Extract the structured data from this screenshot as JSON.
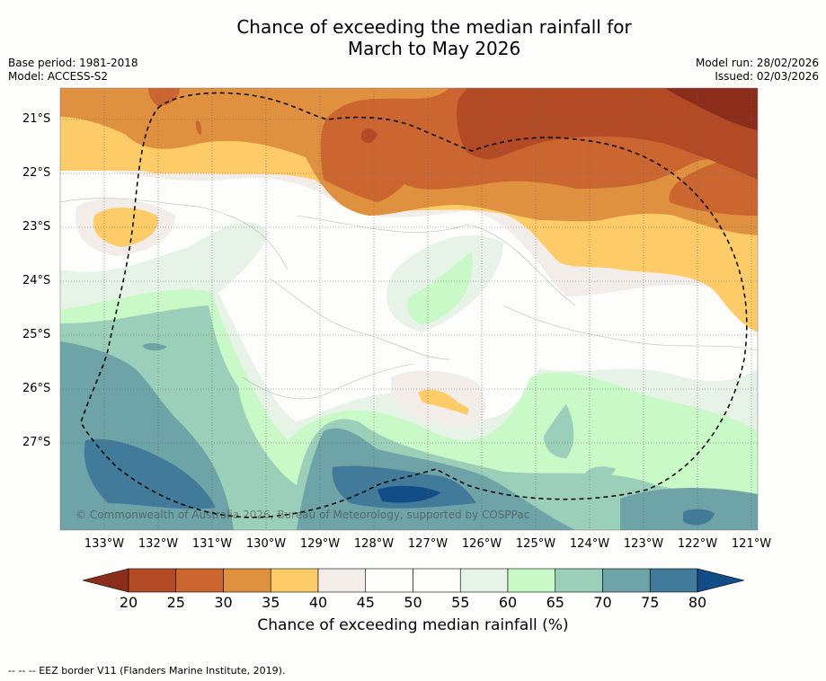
{
  "title_line1": "Chance of exceeding the median rainfall for",
  "title_line2": "March to May 2026",
  "base_period": "Base period: 1981-2018",
  "model": "Model: ACCESS-S2",
  "model_run": "Model run: 28/02/2026",
  "issued": "Issued: 02/03/2026",
  "copyright": "© Commonwealth of Australia 2026, Bureau of Meteorology, supported by COSPPac",
  "footer": "--  --  -- EEZ border V11 (Flanders Marine Institute, 2019).",
  "map": {
    "lat_labels": [
      "21°S",
      "22°S",
      "23°S",
      "24°S",
      "25°S",
      "26°S",
      "27°S"
    ],
    "lon_labels": [
      "133°W",
      "132°W",
      "131°W",
      "130°W",
      "129°W",
      "128°W",
      "127°W",
      "126°W",
      "125°W",
      "124°W",
      "123°W",
      "122°W",
      "121°W"
    ]
  },
  "colorbar": {
    "label": "Chance of exceeding median rainfall (%)",
    "ticks": [
      "20",
      "25",
      "30",
      "35",
      "40",
      "45",
      "50",
      "55",
      "60",
      "65",
      "70",
      "75",
      "80"
    ],
    "colors": [
      "#8c2d1c",
      "#b24a26",
      "#cc6630",
      "#df9140",
      "#fdcb67",
      "#f3ede9",
      "#fdfefc",
      "#fdfefc",
      "#e8f3e8",
      "#c8f9c6",
      "#9ccfb9",
      "#6ea3a8",
      "#427b9a",
      "#134d88"
    ]
  }
}
